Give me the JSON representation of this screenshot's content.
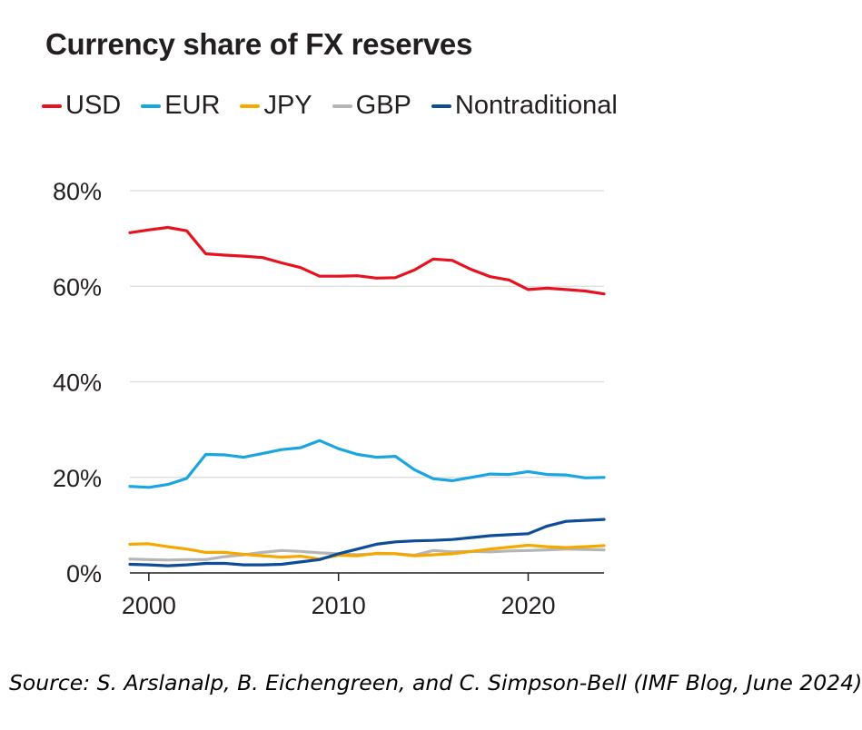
{
  "chart_data": {
    "type": "line",
    "title": "Currency share of FX reserves",
    "xlabel": "",
    "ylabel": "",
    "ylim": [
      0,
      80
    ],
    "xlim": [
      1999,
      2024
    ],
    "grid": true,
    "legend_placement": "top",
    "x_ticks": [
      2000,
      2010,
      2020
    ],
    "x_tick_labels": [
      "2000",
      "2010",
      "2020"
    ],
    "y_ticks": [
      0,
      20,
      40,
      60,
      80
    ],
    "y_tick_labels": [
      "0%",
      "20%",
      "40%",
      "60%",
      "80%"
    ],
    "x": [
      1999,
      2000,
      2001,
      2002,
      2003,
      2004,
      2005,
      2006,
      2007,
      2008,
      2009,
      2010,
      2011,
      2012,
      2013,
      2014,
      2015,
      2016,
      2017,
      2018,
      2019,
      2020,
      2021,
      2022,
      2023,
      2024
    ],
    "series": [
      {
        "name": "USD",
        "color": "#e4131f",
        "values": [
          71.2,
          71.8,
          72.3,
          71.6,
          66.8,
          66.5,
          66.3,
          66.0,
          64.9,
          63.9,
          62.1,
          62.1,
          62.2,
          61.7,
          61.8,
          63.4,
          65.7,
          65.4,
          63.5,
          62.0,
          61.3,
          59.3,
          59.6,
          59.3,
          59.0,
          58.4
        ]
      },
      {
        "name": "EUR",
        "color": "#19a6e0",
        "values": [
          18.1,
          17.9,
          18.5,
          19.8,
          24.8,
          24.7,
          24.2,
          25.0,
          25.8,
          26.2,
          27.7,
          26.0,
          24.8,
          24.2,
          24.4,
          21.6,
          19.7,
          19.3,
          20.0,
          20.7,
          20.6,
          21.2,
          20.6,
          20.5,
          19.9,
          20.0
        ]
      },
      {
        "name": "JPY",
        "color": "#f5a800",
        "values": [
          6.0,
          6.1,
          5.5,
          5.0,
          4.3,
          4.3,
          3.9,
          3.6,
          3.3,
          3.5,
          2.9,
          3.7,
          3.6,
          4.1,
          4.0,
          3.6,
          3.8,
          4.0,
          4.5,
          5.0,
          5.4,
          5.8,
          5.5,
          5.3,
          5.5,
          5.7
        ]
      },
      {
        "name": "GBP",
        "color": "#b5b5b5",
        "values": [
          2.9,
          2.8,
          2.7,
          2.8,
          2.8,
          3.4,
          3.8,
          4.3,
          4.7,
          4.5,
          4.2,
          4.0,
          3.8,
          4.0,
          4.0,
          3.7,
          4.7,
          4.4,
          4.5,
          4.4,
          4.6,
          4.7,
          4.8,
          5.0,
          4.9,
          4.8
        ]
      },
      {
        "name": "Nontraditional",
        "color": "#0f4c97",
        "values": [
          1.8,
          1.7,
          1.5,
          1.7,
          2.0,
          2.0,
          1.7,
          1.7,
          1.8,
          2.3,
          2.8,
          4.0,
          5.0,
          6.0,
          6.5,
          6.7,
          6.8,
          7.0,
          7.4,
          7.8,
          8.0,
          8.2,
          9.8,
          10.8,
          11.0,
          11.2
        ]
      }
    ]
  },
  "source": "Source: S. Arslanalp, B. Eichengreen, and C. Simpson-Bell (IMF Blog, June 2024)"
}
